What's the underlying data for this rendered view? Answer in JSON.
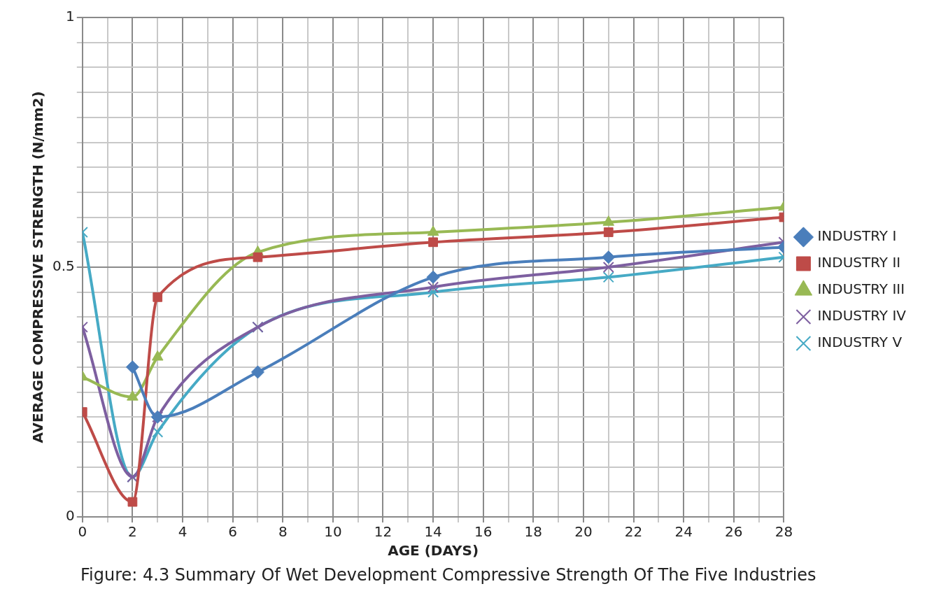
{
  "chart_data": {
    "type": "line",
    "xlabel": "AGE (DAYS)",
    "ylabel": "AVERAGE COMPRESSIVE STRENGTH (N/mm2)",
    "annotations": [
      "Figure: 4.3 Summary Of Wet Development  Compressive Strength Of The Five  Industries"
    ],
    "x": [
      0,
      2,
      3,
      7,
      14,
      21,
      28
    ],
    "series": [
      {
        "name": "INDUSTRY I",
        "color": "#4a7ebb",
        "marker": "diamond",
        "values": [
          null,
          0.3,
          0.2,
          0.29,
          0.48,
          0.52,
          0.54
        ]
      },
      {
        "name": "INDUSTRY II",
        "color": "#be4b48",
        "marker": "square",
        "values": [
          0.21,
          0.03,
          0.44,
          0.52,
          0.55,
          0.57,
          0.6
        ]
      },
      {
        "name": "INDUSTRY III",
        "color": "#98b954",
        "marker": "triangle",
        "values": [
          0.28,
          0.24,
          0.32,
          0.53,
          0.57,
          0.59,
          0.62
        ]
      },
      {
        "name": "INDUSTRY IV",
        "color": "#7d5fa0",
        "marker": "cross",
        "values": [
          0.38,
          0.08,
          0.2,
          0.38,
          0.46,
          0.5,
          0.55
        ]
      },
      {
        "name": "INDUSTRY V",
        "color": "#46aac5",
        "marker": "cross",
        "values": [
          0.57,
          0.08,
          0.17,
          0.38,
          0.45,
          0.48,
          0.52
        ]
      }
    ],
    "xlim": [
      0,
      28
    ],
    "xticks": [
      0,
      {
        "value": 1,
        "label": null
      },
      2,
      {
        "value": 3,
        "label": null
      },
      4,
      {
        "value": 5,
        "label": null
      },
      6,
      {
        "value": 7,
        "label": null
      },
      8,
      {
        "value": 9,
        "label": null
      },
      10,
      {
        "value": 11,
        "label": null
      },
      12,
      {
        "value": 13,
        "label": null
      },
      14,
      {
        "value": 15,
        "label": null
      },
      16,
      {
        "value": 17,
        "label": null
      },
      18,
      {
        "value": 19,
        "label": null
      },
      20,
      {
        "value": 21,
        "label": null
      },
      22,
      {
        "value": 23,
        "label": null
      },
      24,
      {
        "value": 25,
        "label": null
      },
      26,
      {
        "value": 27,
        "label": null
      },
      28
    ],
    "ylim": [
      0,
      1
    ],
    "yticks": [
      0,
      {
        "value": 0.05,
        "label": null
      },
      {
        "value": 0.1,
        "label": null
      },
      {
        "value": 0.15,
        "label": null
      },
      {
        "value": 0.2,
        "label": null
      },
      {
        "value": 0.25,
        "label": null
      },
      {
        "value": 0.3,
        "label": null
      },
      {
        "value": 0.35,
        "label": null
      },
      {
        "value": 0.4,
        "label": null
      },
      {
        "value": 0.45,
        "label": null
      },
      0.5,
      {
        "value": 0.55,
        "label": null
      },
      {
        "value": 0.6,
        "label": null
      },
      {
        "value": 0.65,
        "label": null
      },
      {
        "value": 0.7,
        "label": null
      },
      {
        "value": 0.75,
        "label": null
      },
      {
        "value": 0.8,
        "label": null
      },
      {
        "value": 0.85,
        "label": null
      },
      {
        "value": 0.9,
        "label": null
      },
      {
        "value": 0.95,
        "label": null
      },
      1
    ],
    "grid": true,
    "legend": "right",
    "line_style": "solid"
  }
}
